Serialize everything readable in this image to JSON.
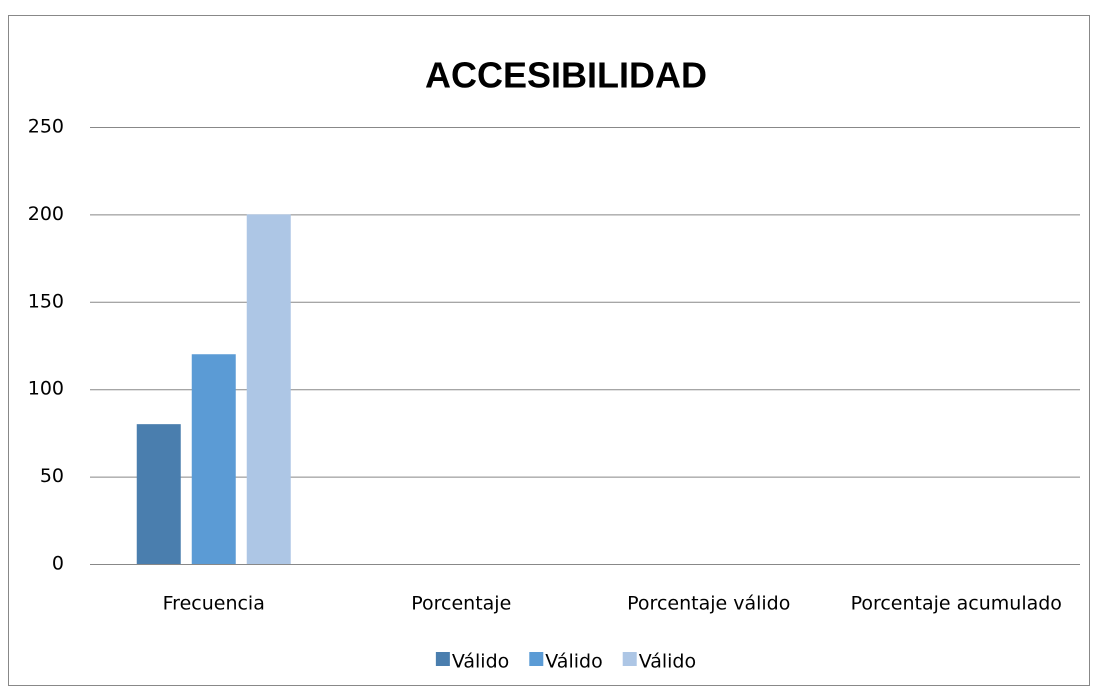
{
  "chart_data": {
    "type": "bar",
    "title": "ACCESIBILIDAD",
    "categories": [
      "Frecuencia",
      "Porcentaje",
      "Porcentaje válido",
      "Porcentaje acumulado"
    ],
    "series": [
      {
        "name": "Válido",
        "color": "#4a7eae",
        "values": [
          80,
          null,
          null,
          null
        ]
      },
      {
        "name": "Válido",
        "color": "#5b9bd5",
        "values": [
          120,
          null,
          null,
          null
        ]
      },
      {
        "name": "Válido",
        "color": "#adc6e5",
        "values": [
          200,
          null,
          null,
          null
        ]
      }
    ],
    "ylim": [
      0,
      250
    ],
    "yticks": [
      0,
      50,
      100,
      150,
      200,
      250
    ],
    "grid": true,
    "legend": "bottom"
  }
}
